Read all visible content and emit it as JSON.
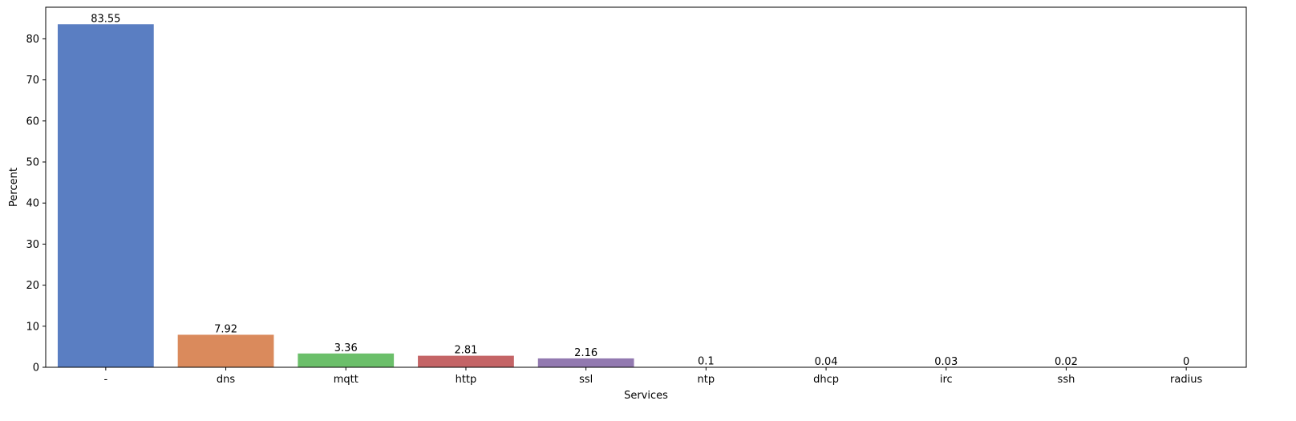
{
  "chart_data": {
    "type": "bar",
    "categories": [
      "-",
      "dns",
      "mqtt",
      "http",
      "ssl",
      "ntp",
      "dhcp",
      "irc",
      "ssh",
      "radius"
    ],
    "values": [
      83.55,
      7.92,
      3.36,
      2.81,
      2.16,
      0.1,
      0.04,
      0.03,
      0.02,
      0
    ],
    "data_labels": [
      "83.55",
      "7.92",
      "3.36",
      "2.81",
      "2.16",
      "0.1",
      "0.04",
      "0.03",
      "0.02",
      "0"
    ],
    "colors": [
      "#5a7ec2",
      "#da8a5c",
      "#6bbf6a",
      "#c46466",
      "#9279b0",
      "#8c6d57",
      "#d98fcb",
      "#8c8c8c",
      "#c8c26a",
      "#63b6c9"
    ],
    "title": "",
    "xlabel": "Services",
    "ylabel": "Percent",
    "ylim": [
      0,
      87.7
    ],
    "yticks": [
      0,
      10,
      20,
      30,
      40,
      50,
      60,
      70,
      80
    ],
    "grid": false,
    "legend": "none"
  }
}
